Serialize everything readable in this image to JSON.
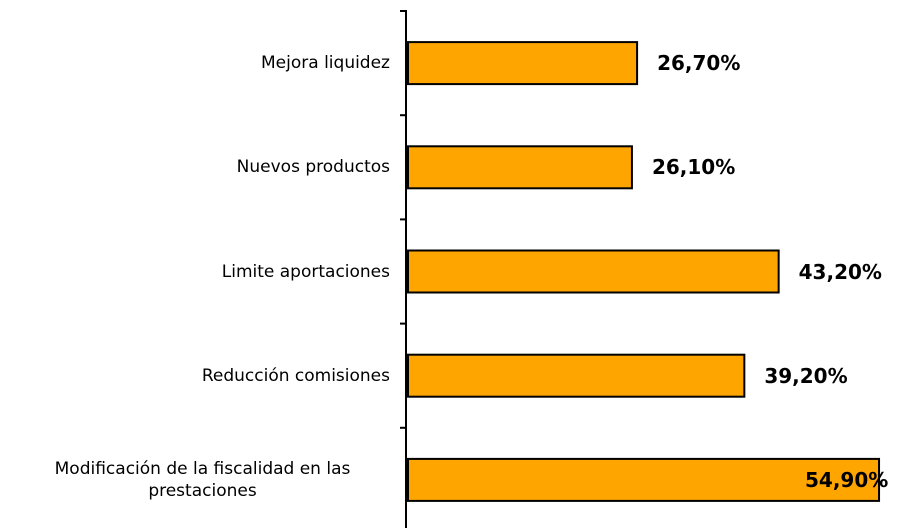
{
  "chart_data": {
    "type": "bar",
    "orientation": "horizontal",
    "categories": [
      "Mejora liquidez",
      "Nuevos productos",
      "Limite aportaciones",
      "Reducción comisiones",
      "Modificación de la fiscalidad en  las prestaciones"
    ],
    "values": [
      26.7,
      26.1,
      43.2,
      39.2,
      54.9
    ],
    "value_labels": [
      "26,70%",
      "26,10%",
      "43,20%",
      "39,20%",
      "54,90%"
    ],
    "color": "#ffa500"
  }
}
